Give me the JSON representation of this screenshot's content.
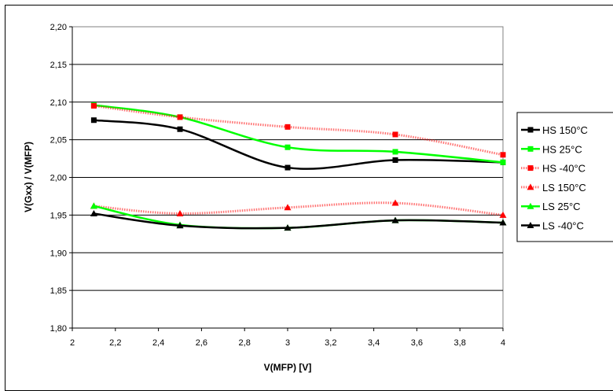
{
  "chart_data": {
    "type": "line",
    "xlabel": "V(MFP) [V]",
    "ylabel": "V(Gxx) / V(MFP)",
    "xlim": [
      2,
      4
    ],
    "ylim": [
      1.8,
      2.2
    ],
    "x_ticks": [
      "2",
      "2,2",
      "2,4",
      "2,6",
      "2,8",
      "3",
      "3,2",
      "3,4",
      "3,6",
      "3,8",
      "4"
    ],
    "y_ticks": [
      "1,80",
      "1,85",
      "1,90",
      "1,95",
      "2,00",
      "2,05",
      "2,10",
      "2,15",
      "2,20"
    ],
    "grid": "horizontal",
    "legend_position": "right",
    "x": [
      2.1,
      2.5,
      3.0,
      3.5,
      4.0
    ],
    "series": [
      {
        "name": "HS 150°C",
        "values": [
          2.076,
          2.064,
          2.013,
          2.023,
          2.02
        ],
        "color": "#000000",
        "marker": "square",
        "style": "solid"
      },
      {
        "name": "HS 25°C",
        "values": [
          2.096,
          2.08,
          2.04,
          2.034,
          2.02
        ],
        "color": "#00ff00",
        "marker": "square",
        "style": "solid"
      },
      {
        "name": "HS -40°C",
        "values": [
          2.095,
          2.08,
          2.067,
          2.057,
          2.03
        ],
        "color": "#ff0000",
        "marker": "square",
        "style": "dotted"
      },
      {
        "name": "LS 150°C",
        "values": [
          1.962,
          1.952,
          1.96,
          1.966,
          1.95
        ],
        "color": "#ff0000",
        "marker": "triangle",
        "style": "dotted"
      },
      {
        "name": "LS 25°C",
        "values": [
          1.962,
          1.937,
          1.933,
          1.943,
          1.94
        ],
        "color": "#00ff00",
        "marker": "triangle",
        "style": "solid"
      },
      {
        "name": "LS -40°C",
        "values": [
          1.952,
          1.936,
          1.933,
          1.943,
          1.94
        ],
        "color": "#000000",
        "marker": "triangle",
        "style": "solid"
      }
    ]
  }
}
